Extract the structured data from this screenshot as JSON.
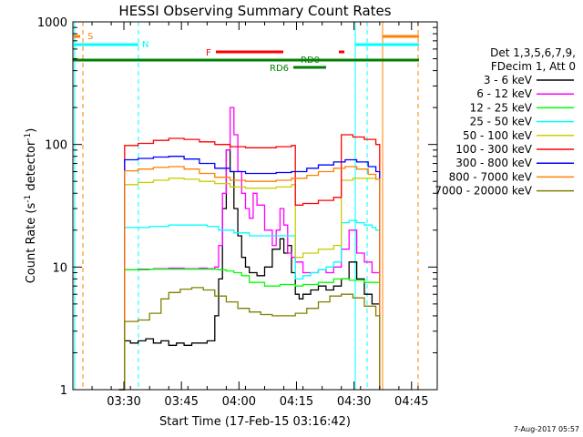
{
  "chart_data": {
    "type": "line",
    "title": "HESSI Observing Summary Count Rates",
    "xlabel": "Start Time (17-Feb-15 03:16:42)",
    "ylabel_main": "Count Rate (s",
    "ylabel_sup1": "-1",
    "ylabel_mid": " detector",
    "ylabel_sup2": "-1",
    "ylabel_end": ")",
    "y_scale": "log",
    "ylim": [
      1,
      1000
    ],
    "xlim_minutes": [
      0,
      95
    ],
    "x_tick_labels": [
      "03:30",
      "03:45",
      "04:00",
      "04:15",
      "04:30",
      "04:45"
    ],
    "x_tick_minutes": [
      13.3,
      28.3,
      43.3,
      58.3,
      73.3,
      88.3
    ],
    "y_tick_labels": [
      "1",
      "10",
      "100",
      "1000"
    ],
    "y_tick_values": [
      1,
      10,
      100,
      1000
    ],
    "legend_placement": "right",
    "legend_header": [
      "Det 1,3,5,6,7,9,",
      "FDecim 1, Att 0"
    ],
    "series": [
      {
        "name": "3 - 6 keV",
        "color": "#000000",
        "x": [
          12,
          13.5,
          15,
          17,
          19,
          21,
          23,
          25,
          27,
          29,
          31,
          33,
          35,
          37,
          38,
          39,
          40,
          41,
          42,
          43,
          44,
          45,
          46,
          47,
          48,
          50,
          52,
          54,
          55,
          56,
          57,
          58,
          59,
          60,
          62,
          64,
          66,
          68,
          70,
          72,
          74,
          76,
          78,
          80
        ],
        "values": [
          1,
          2.5,
          2.4,
          2.5,
          2.6,
          2.4,
          2.5,
          2.3,
          2.4,
          2.3,
          2.4,
          2.4,
          2.5,
          4,
          8,
          30,
          90,
          60,
          30,
          18,
          12,
          10,
          9,
          9,
          8.5,
          10,
          14,
          17,
          13,
          15,
          9,
          6,
          5.5,
          6,
          6.5,
          7,
          6.5,
          7,
          8,
          11,
          8,
          6,
          5,
          1
        ]
      },
      {
        "name": "6 - 12 keV",
        "color": "#ff00ff",
        "x": [
          12,
          13.5,
          17,
          21,
          25,
          29,
          33,
          35,
          37,
          38,
          39,
          40,
          41,
          42,
          43,
          44,
          45,
          46,
          47,
          48,
          50,
          52,
          53,
          54,
          55,
          56,
          57,
          58,
          60,
          62,
          64,
          66,
          68,
          70,
          72,
          74,
          76,
          78,
          80
        ],
        "values": [
          1,
          9.5,
          9.6,
          9.7,
          9.8,
          9.7,
          9.8,
          9.7,
          10,
          15,
          40,
          90,
          200,
          120,
          60,
          40,
          30,
          25,
          40,
          32,
          20,
          15,
          20,
          30,
          22,
          13,
          12,
          11,
          9,
          9,
          9.5,
          9,
          10,
          14,
          20,
          13,
          11,
          9,
          1
        ]
      },
      {
        "name": "12 - 25 keV",
        "color": "#00ff00",
        "x": [
          12,
          13.5,
          20,
          30,
          38,
          40,
          42,
          44,
          46,
          50,
          54,
          58,
          60,
          64,
          68,
          72,
          76,
          79,
          80
        ],
        "values": [
          1,
          9.5,
          9.6,
          9.6,
          9.5,
          9.3,
          9.0,
          8.5,
          7.5,
          7.0,
          7.2,
          7.0,
          7.2,
          7.5,
          8.0,
          7.8,
          7.5,
          7.5,
          1
        ]
      },
      {
        "name": "25 - 50 keV",
        "color": "#00ffff",
        "x": [
          12,
          13.5,
          20,
          25,
          30,
          35,
          38,
          42,
          46,
          50,
          54,
          57,
          58,
          60,
          62,
          64,
          66,
          68,
          70,
          72,
          74,
          76,
          78,
          79,
          80
        ],
        "values": [
          1,
          21,
          21.5,
          22,
          22,
          21.5,
          20,
          19,
          18,
          18,
          18,
          18,
          8,
          8.5,
          9,
          9.5,
          10,
          11,
          23,
          24,
          23,
          22,
          21,
          20,
          1
        ]
      },
      {
        "name": "50 - 100 keV",
        "color": "#cccc00",
        "x": [
          12,
          13.5,
          17,
          21,
          25,
          29,
          33,
          37,
          41,
          45,
          49,
          53,
          57,
          58,
          60,
          64,
          68,
          69,
          70,
          73,
          76,
          79,
          80
        ],
        "values": [
          1,
          47,
          49,
          51,
          53,
          52,
          50,
          48,
          45,
          44,
          44,
          45,
          47,
          12,
          13,
          14,
          15,
          15,
          51,
          53,
          53,
          52,
          1
        ]
      },
      {
        "name": "100 - 300 keV",
        "color": "#ff0000",
        "x": [
          12,
          13.5,
          17,
          21,
          25,
          29,
          33,
          37,
          41,
          45,
          49,
          53,
          57,
          58,
          60,
          64,
          68,
          69,
          70,
          73,
          76,
          79,
          80
        ],
        "values": [
          1,
          98,
          102,
          108,
          112,
          110,
          105,
          100,
          96,
          94,
          94,
          96,
          98,
          32,
          33,
          35,
          37,
          37,
          120,
          115,
          110,
          100,
          1
        ]
      },
      {
        "name": "300 - 800 keV",
        "color": "#0000ff",
        "x": [
          12,
          13.5,
          17,
          21,
          25,
          29,
          33,
          37,
          41,
          45,
          49,
          53,
          57,
          61,
          64,
          68,
          71,
          74,
          77,
          79,
          80
        ],
        "values": [
          1,
          75,
          77,
          79,
          80,
          76,
          70,
          64,
          60,
          58,
          58,
          59,
          60,
          64,
          68,
          72,
          75,
          72,
          66,
          60,
          1
        ]
      },
      {
        "name": "800 - 7000 keV",
        "color": "#ff8000",
        "x": [
          12,
          13.5,
          17,
          21,
          25,
          29,
          33,
          37,
          41,
          45,
          49,
          53,
          57,
          61,
          64,
          68,
          71,
          74,
          77,
          79,
          80
        ],
        "values": [
          1,
          61,
          63,
          65,
          66,
          63,
          58,
          54,
          51,
          50,
          50,
          51,
          53,
          56,
          60,
          64,
          66,
          63,
          57,
          52,
          1
        ]
      },
      {
        "name": "7000 - 20000 keV",
        "color": "#808000",
        "x": [
          12,
          13.5,
          17,
          20,
          23,
          25,
          28,
          31,
          34,
          37,
          40,
          43,
          46,
          49,
          52,
          55,
          58,
          61,
          64,
          67,
          70,
          73,
          76,
          79,
          80
        ],
        "values": [
          1,
          3.6,
          3.7,
          4.2,
          5.5,
          6.2,
          6.6,
          6.8,
          6.5,
          5.8,
          5.2,
          4.6,
          4.3,
          4.1,
          4.0,
          4.0,
          4.2,
          4.6,
          5.2,
          5.8,
          6.0,
          5.6,
          4.8,
          4.0,
          1
        ]
      }
    ],
    "state_bars": [
      {
        "label": "S",
        "color": "#ff8000"
      },
      {
        "label": "N",
        "color": "#00ffff"
      },
      {
        "label": "F",
        "color": "#ff0000"
      },
      {
        "label": "RD0",
        "color": "#008000"
      },
      {
        "label": "RD6",
        "color": "#008000"
      }
    ],
    "footer_date": "7-Aug-2017 05:57"
  }
}
